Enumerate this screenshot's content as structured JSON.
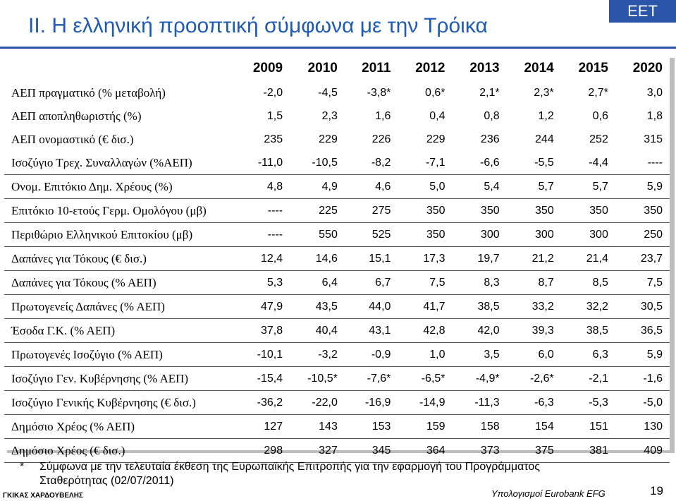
{
  "header": {
    "title": "II.   Η ελληνική προοπτική σύμφωνα με την Τρόικα",
    "brand": "EET"
  },
  "table": {
    "years": [
      "2009",
      "2010",
      "2011",
      "2012",
      "2013",
      "2014",
      "2015",
      "2020"
    ],
    "rows": [
      {
        "label": "ΑΕΠ πραγματικό (% μεταβολή)",
        "values": [
          "-2,0",
          "-4,5",
          "-3,8*",
          "0,6*",
          "2,1*",
          "2,3*",
          "2,7*",
          "3,0"
        ]
      },
      {
        "label": "ΑΕΠ αποπληθωριστής (%)",
        "values": [
          "1,5",
          "2,3",
          "1,6",
          "0,4",
          "0,8",
          "1,2",
          "0,6",
          "1,8"
        ]
      },
      {
        "label": "ΑΕΠ ονομαστικό (€ δισ.)",
        "values": [
          "235",
          "229",
          "226",
          "229",
          "236",
          "244",
          "252",
          "315"
        ]
      },
      {
        "label": "Ισοζύγιο Τρεχ. Συναλλαγών (%ΑΕΠ)",
        "values": [
          "-11,0",
          "-10,5",
          "-8,2",
          "-7,1",
          "-6,6",
          "-5,5",
          "-4,4",
          "----"
        ]
      },
      {
        "label": "Ονομ. Επιτόκιο Δημ. Χρέους (%)",
        "values": [
          "4,8",
          "4,9",
          "4,6",
          "5,0",
          "5,4",
          "5,7",
          "5,7",
          "5,9"
        ]
      },
      {
        "label": "Επιτόκιο 10-ετούς Γερμ. Ομολόγου (μβ)",
        "values": [
          "----",
          "225",
          "275",
          "350",
          "350",
          "350",
          "350",
          "350"
        ]
      },
      {
        "label": "Περιθώριο Ελληνικού Επιτοκίου (μβ)",
        "values": [
          "----",
          "550",
          "525",
          "350",
          "300",
          "300",
          "300",
          "250"
        ]
      },
      {
        "label": "Δαπάνες για Τόκους (€ δισ.)",
        "values": [
          "12,4",
          "14,6",
          "15,1",
          "17,3",
          "19,7",
          "21,2",
          "21,4",
          "23,7"
        ]
      },
      {
        "label": "Δαπάνες για Τόκους (% ΑΕΠ)",
        "values": [
          "5,3",
          "6,4",
          "6,7",
          "7,5",
          "8,3",
          "8,7",
          "8,5",
          "7,5"
        ]
      },
      {
        "label": "Πρωτογενείς Δαπάνες (% ΑΕΠ)",
        "values": [
          "47,9",
          "43,5",
          "44,0",
          "41,7",
          "38,5",
          "33,2",
          "32,2",
          "30,5"
        ]
      },
      {
        "label": "Έσοδα Γ.Κ. (% ΑΕΠ)",
        "values": [
          "37,8",
          "40,4",
          "43,1",
          "42,8",
          "42,0",
          "39,3",
          "38,5",
          "36,5"
        ]
      },
      {
        "label": "Πρωτογενές Ισοζύγιο (% ΑΕΠ)",
        "values": [
          "-10,1",
          "-3,2",
          "-0,9",
          "1,0",
          "3,5",
          "6,0",
          "6,3",
          "5,9"
        ]
      },
      {
        "label": "Ισοζύγιο Γεν. Κυβέρνησης (% ΑΕΠ)",
        "values": [
          "-15,4",
          "-10,5*",
          "-7,6*",
          "-6,5*",
          "-4,9*",
          "-2,6*",
          "-2,1",
          "-1,6"
        ]
      },
      {
        "label": "Ισοζύγιο Γενικής Κυβέρνησης (€ δισ.)",
        "values": [
          "-36,2",
          "-22,0",
          "-16,9",
          "-14,9",
          "-11,3",
          "-6,3",
          "-5,3",
          "-5,0"
        ]
      },
      {
        "label": "Δημόσιο Χρέος (% ΑΕΠ)",
        "values": [
          "127",
          "143",
          "153",
          "159",
          "158",
          "154",
          "151",
          "130"
        ]
      },
      {
        "label": "Δημόσιο Χρέος (€ δισ.)",
        "values": [
          "298",
          "327",
          "345",
          "364",
          "373",
          "375",
          "381",
          "409"
        ]
      }
    ]
  },
  "footnote": {
    "marker": "*",
    "text": "Σύμφωνα με την τελευταία έκθεση της Ευρωπαϊκής Επιτροπής για την εφαρμογή του Προγράμματος Σταθερότητας (02/07/2011)"
  },
  "footer": {
    "author": "ΓΚΙΚΑΣ ΧΑΡΔΟΥΒΕΛΗΣ",
    "source": "Υπολογισμοί Eurobank EFG",
    "page": "19"
  },
  "colors": {
    "title": "#1f5ab4",
    "brand_bg": "#2a55a8"
  }
}
